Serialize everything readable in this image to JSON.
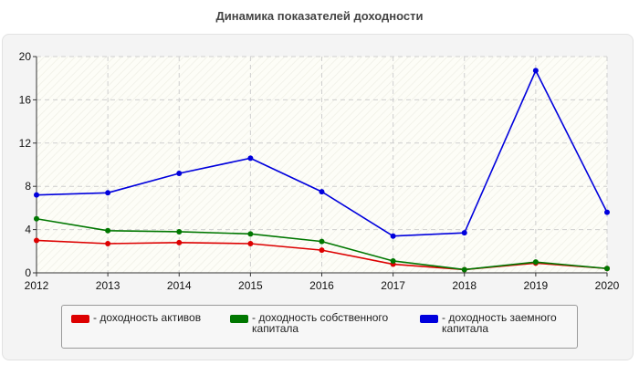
{
  "title": "Динамика показателей доходности",
  "chart_data": {
    "type": "line",
    "x": [
      "2012",
      "2013",
      "2014",
      "2015",
      "2016",
      "2017",
      "2018",
      "2019",
      "2020"
    ],
    "y_ticks": [
      0,
      4,
      8,
      12,
      16,
      20
    ],
    "ylim": [
      0,
      20
    ],
    "grid": true,
    "legend_position": "bottom",
    "series": [
      {
        "name": "- доходность активов",
        "color": "#dd0000",
        "values": [
          3.0,
          2.7,
          2.8,
          2.7,
          2.1,
          0.8,
          0.3,
          0.9,
          0.4
        ]
      },
      {
        "name": "- доходность собственного капитала",
        "color": "#007700",
        "values": [
          5.0,
          3.9,
          3.8,
          3.6,
          2.9,
          1.1,
          0.3,
          1.0,
          0.4
        ]
      },
      {
        "name": "- доходность заемного капитала",
        "color": "#0000dd",
        "values": [
          7.2,
          7.4,
          9.2,
          10.6,
          7.5,
          3.4,
          3.7,
          18.7,
          5.6
        ]
      }
    ]
  }
}
